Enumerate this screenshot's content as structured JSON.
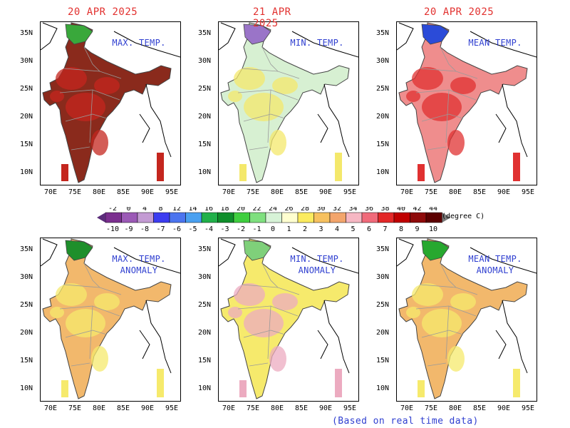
{
  "panels": [
    {
      "date": "20 APR 2025",
      "title": [
        "MAX. TEMP.",
        ""
      ],
      "base": "#8a2a1c",
      "accent": "#c4261e",
      "north": "#39a83b",
      "kind": "max"
    },
    {
      "date": "21 APR 2025",
      "title": [
        "MIN. TEMP.",
        ""
      ],
      "base": "#d7f0d2",
      "accent": "#f4e86b",
      "north": "#9a74c8",
      "kind": "min"
    },
    {
      "date": "20 APR 2025",
      "title": [
        "MEAN TEMP.",
        ""
      ],
      "base": "#ef8d8d",
      "accent": "#e03131",
      "north": "#2b4bd8",
      "kind": "mean"
    },
    {
      "date": "",
      "title": [
        "MAX. TEMP.",
        "ANOMALY"
      ],
      "base": "#f2b86c",
      "accent": "#f6ea6c",
      "north": "#1e8f2b",
      "kind": "anom1"
    },
    {
      "date": "",
      "title": [
        "MIN. TEMP.",
        "ANOMALY"
      ],
      "base": "#f6ea6c",
      "accent": "#ecabc0",
      "north": "#7fd07a",
      "kind": "anom2"
    },
    {
      "date": "",
      "title": [
        "MEAN TEMP.",
        "ANOMALY"
      ],
      "base": "#f2b86c",
      "accent": "#f6ea6c",
      "north": "#27a82f",
      "kind": "anom3"
    }
  ],
  "axes": {
    "x_ticks": [
      "70E",
      "75E",
      "80E",
      "85E",
      "90E",
      "95E"
    ],
    "y_ticks": [
      "35N",
      "30N",
      "25N",
      "20N",
      "15N",
      "10N"
    ]
  },
  "legend": {
    "top_labels": [
      "-2",
      "0",
      "4",
      "8",
      "12",
      "14",
      "16",
      "18",
      "20",
      "22",
      "24",
      "26",
      "28",
      "30",
      "32",
      "34",
      "36",
      "38",
      "40",
      "42",
      "44"
    ],
    "bottom_labels": [
      "-10",
      "-9",
      "-8",
      "-7",
      "-6",
      "-5",
      "-4",
      "-3",
      "-2",
      "-1",
      "0",
      "1",
      "2",
      "3",
      "4",
      "5",
      "6",
      "7",
      "8",
      "9",
      "10"
    ],
    "colors": [
      "#7b2f8f",
      "#9b59b6",
      "#c39bd3",
      "#3c3cf0",
      "#4b74ef",
      "#4aa0f0",
      "#21b04a",
      "#0f8e2b",
      "#3fce3f",
      "#7fe07f",
      "#d7f3d7",
      "#ffffd0",
      "#fbeb5f",
      "#f7c15f",
      "#f3a56c",
      "#f6b7c3",
      "#f06a7a",
      "#e32828",
      "#c00000",
      "#8e0a0a",
      "#5c0000"
    ],
    "unit": "(degree C)"
  },
  "footnote": "(Based on real time data)"
}
